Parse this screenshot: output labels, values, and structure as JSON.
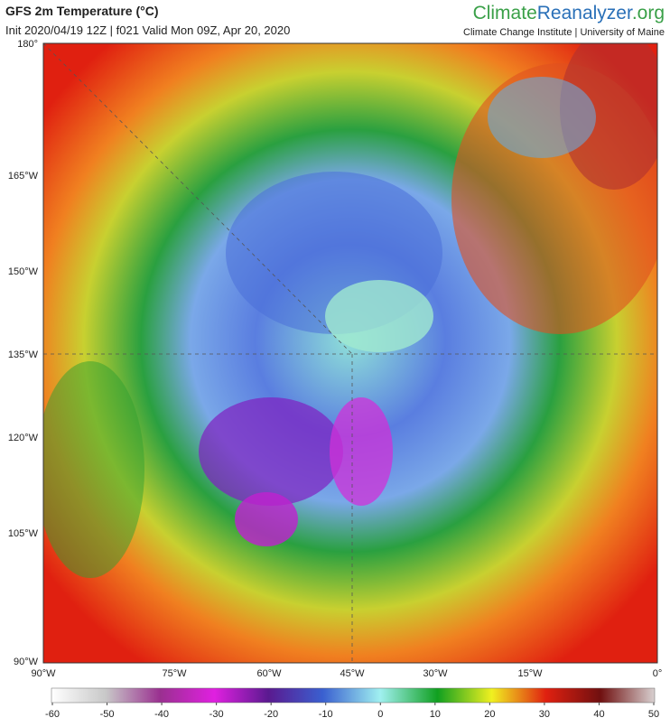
{
  "header": {
    "title": "GFS 2m Temperature (°C)",
    "subtitle": "Init 2020/04/19 12Z | f021 Valid Mon 09Z, Apr 20, 2020",
    "brand": {
      "part1": "Climate",
      "part2": "Reanalyzer",
      "part3": ".org"
    },
    "institute": "Climate Change Institute | University of Maine"
  },
  "axes": {
    "left": [
      "180°",
      "165°W",
      "150°W",
      "135°W",
      "120°W",
      "105°W",
      "90°W"
    ],
    "bottom": [
      "90°W",
      "75°W",
      "60°W",
      "45°W",
      "30°W",
      "15°W",
      "0°"
    ]
  },
  "colorbar": {
    "ticks": [
      -60,
      -50,
      -40,
      -30,
      -20,
      -10,
      0,
      10,
      20,
      30,
      40,
      50
    ]
  }
}
